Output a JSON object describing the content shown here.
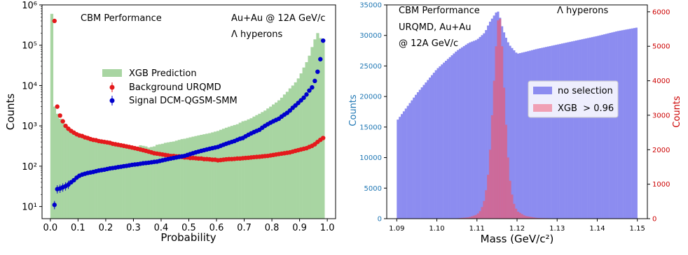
{
  "chart_data": [
    {
      "type": "bar",
      "title": "",
      "annotations": [
        "CBM Performance",
        "Au+Au @ 12A GeV/c",
        "Λ hyperons"
      ],
      "xlabel": "Probability",
      "ylabel": "Counts",
      "xlim": [
        -0.03,
        1.03
      ],
      "ylim": [
        5,
        1000000
      ],
      "yscale": "log",
      "xticks": [
        "0.0",
        "0.1",
        "0.2",
        "0.3",
        "0.4",
        "0.5",
        "0.6",
        "0.7",
        "0.8",
        "0.9",
        "1.0"
      ],
      "yticks": [
        "10¹",
        "10²",
        "10³",
        "10⁴",
        "10⁵",
        "10⁶"
      ],
      "legend_position": "center",
      "grid": false,
      "series": [
        {
          "name": "XGB Prediction",
          "kind": "histogram",
          "color": "#a8d5a2",
          "x": [
            0.005,
            0.015,
            0.025,
            0.035,
            0.045,
            0.055,
            0.065,
            0.075,
            0.085,
            0.095,
            0.105,
            0.115,
            0.125,
            0.135,
            0.145,
            0.155,
            0.165,
            0.175,
            0.185,
            0.195,
            0.205,
            0.215,
            0.225,
            0.235,
            0.245,
            0.255,
            0.265,
            0.275,
            0.285,
            0.295,
            0.305,
            0.315,
            0.325,
            0.335,
            0.345,
            0.355,
            0.365,
            0.375,
            0.385,
            0.395,
            0.405,
            0.415,
            0.425,
            0.435,
            0.445,
            0.455,
            0.465,
            0.475,
            0.485,
            0.495,
            0.505,
            0.515,
            0.525,
            0.535,
            0.545,
            0.555,
            0.565,
            0.575,
            0.585,
            0.595,
            0.605,
            0.615,
            0.625,
            0.635,
            0.645,
            0.655,
            0.665,
            0.675,
            0.685,
            0.695,
            0.705,
            0.715,
            0.725,
            0.735,
            0.745,
            0.755,
            0.765,
            0.775,
            0.785,
            0.795,
            0.805,
            0.815,
            0.825,
            0.835,
            0.845,
            0.855,
            0.865,
            0.875,
            0.885,
            0.895,
            0.905,
            0.915,
            0.925,
            0.935,
            0.945,
            0.955,
            0.965,
            0.975,
            0.985
          ],
          "values": [
            600000,
            3000,
            2000,
            1500,
            1200,
            1000,
            900,
            800,
            700,
            680,
            620,
            570,
            540,
            510,
            490,
            470,
            450,
            430,
            420,
            410,
            400,
            390,
            370,
            360,
            350,
            340,
            330,
            320,
            310,
            300,
            290,
            300,
            330,
            320,
            310,
            290,
            300,
            310,
            340,
            350,
            360,
            380,
            390,
            400,
            410,
            430,
            450,
            470,
            480,
            500,
            520,
            540,
            560,
            580,
            600,
            620,
            640,
            660,
            690,
            720,
            750,
            800,
            850,
            900,
            950,
            1000,
            1050,
            1100,
            1200,
            1300,
            1350,
            1450,
            1550,
            1700,
            1850,
            2000,
            2200,
            2400,
            2700,
            3000,
            3400,
            3800,
            4300,
            5000,
            6000,
            7000,
            8500,
            10000,
            12000,
            15000,
            20000,
            28000,
            38000,
            55000,
            90000,
            140000,
            200000,
            150000,
            140000
          ]
        },
        {
          "name": "Background URQMD",
          "kind": "points",
          "color": "#e41a1c",
          "x": [
            0.015,
            0.025,
            0.035,
            0.045,
            0.055,
            0.065,
            0.075,
            0.085,
            0.095,
            0.105,
            0.115,
            0.125,
            0.135,
            0.145,
            0.155,
            0.165,
            0.175,
            0.185,
            0.195,
            0.205,
            0.215,
            0.225,
            0.235,
            0.245,
            0.255,
            0.265,
            0.275,
            0.285,
            0.295,
            0.305,
            0.315,
            0.325,
            0.335,
            0.345,
            0.355,
            0.365,
            0.375,
            0.385,
            0.395,
            0.405,
            0.415,
            0.425,
            0.435,
            0.445,
            0.455,
            0.465,
            0.475,
            0.485,
            0.495,
            0.505,
            0.515,
            0.525,
            0.535,
            0.545,
            0.555,
            0.565,
            0.575,
            0.585,
            0.595,
            0.605,
            0.615,
            0.625,
            0.635,
            0.645,
            0.655,
            0.665,
            0.675,
            0.685,
            0.695,
            0.705,
            0.715,
            0.725,
            0.735,
            0.745,
            0.755,
            0.765,
            0.775,
            0.785,
            0.795,
            0.805,
            0.815,
            0.825,
            0.835,
            0.845,
            0.855,
            0.865,
            0.875,
            0.885,
            0.895,
            0.905,
            0.915,
            0.925,
            0.935,
            0.945,
            0.955,
            0.965,
            0.975,
            0.985
          ],
          "values": [
            400000,
            3000,
            1800,
            1300,
            1000,
            850,
            750,
            680,
            620,
            580,
            560,
            520,
            500,
            470,
            450,
            440,
            420,
            410,
            400,
            390,
            380,
            360,
            350,
            340,
            330,
            320,
            310,
            300,
            290,
            280,
            270,
            260,
            250,
            240,
            230,
            220,
            210,
            205,
            200,
            195,
            190,
            185,
            180,
            180,
            175,
            175,
            170,
            165,
            165,
            160,
            160,
            158,
            155,
            155,
            150,
            150,
            148,
            145,
            145,
            140,
            142,
            145,
            148,
            150,
            150,
            152,
            155,
            155,
            158,
            160,
            162,
            165,
            168,
            170,
            172,
            175,
            178,
            180,
            185,
            190,
            195,
            200,
            205,
            210,
            215,
            220,
            230,
            240,
            250,
            260,
            270,
            280,
            300,
            320,
            350,
            400,
            450,
            500
          ]
        },
        {
          "name": "Signal DCM-QGSM-SMM",
          "kind": "points",
          "color": "#0000cc",
          "x": [
            0.015,
            0.025,
            0.035,
            0.045,
            0.055,
            0.065,
            0.075,
            0.085,
            0.095,
            0.105,
            0.115,
            0.125,
            0.135,
            0.145,
            0.155,
            0.165,
            0.175,
            0.185,
            0.195,
            0.205,
            0.215,
            0.225,
            0.235,
            0.245,
            0.255,
            0.265,
            0.275,
            0.285,
            0.295,
            0.305,
            0.315,
            0.325,
            0.335,
            0.345,
            0.355,
            0.365,
            0.375,
            0.385,
            0.395,
            0.405,
            0.415,
            0.425,
            0.435,
            0.445,
            0.455,
            0.465,
            0.475,
            0.485,
            0.495,
            0.505,
            0.515,
            0.525,
            0.535,
            0.545,
            0.555,
            0.565,
            0.575,
            0.585,
            0.595,
            0.605,
            0.615,
            0.625,
            0.635,
            0.645,
            0.655,
            0.665,
            0.675,
            0.685,
            0.695,
            0.705,
            0.715,
            0.725,
            0.735,
            0.745,
            0.755,
            0.765,
            0.775,
            0.785,
            0.795,
            0.805,
            0.815,
            0.825,
            0.835,
            0.845,
            0.855,
            0.865,
            0.875,
            0.885,
            0.895,
            0.905,
            0.915,
            0.925,
            0.935,
            0.945,
            0.955,
            0.965,
            0.975,
            0.985
          ],
          "values": [
            11,
            27,
            28,
            30,
            32,
            35,
            40,
            45,
            52,
            58,
            62,
            65,
            68,
            70,
            72,
            75,
            78,
            80,
            82,
            85,
            88,
            90,
            92,
            95,
            97,
            100,
            102,
            105,
            108,
            110,
            112,
            115,
            118,
            120,
            122,
            125,
            128,
            130,
            135,
            140,
            145,
            150,
            155,
            160,
            165,
            170,
            175,
            180,
            190,
            200,
            210,
            220,
            230,
            240,
            250,
            260,
            270,
            280,
            290,
            300,
            320,
            340,
            360,
            380,
            400,
            420,
            450,
            480,
            500,
            550,
            600,
            650,
            700,
            750,
            800,
            900,
            1000,
            1100,
            1200,
            1300,
            1400,
            1500,
            1700,
            1900,
            2100,
            2400,
            2800,
            3200,
            3700,
            4300,
            5000,
            6000,
            7500,
            9000,
            13000,
            22000,
            45000,
            130000
          ]
        }
      ]
    },
    {
      "type": "bar",
      "title": "",
      "annotations": [
        "CBM Performance",
        "URQMD, Au+Au",
        "@ 12A GeV/c",
        "Λ hyperons"
      ],
      "xlabel": "Mass (GeV/c²)",
      "ylabel": "Counts",
      "y2label": "Counts",
      "xlim": [
        1.0875,
        1.1525
      ],
      "ylim": [
        0,
        35000
      ],
      "y2lim": [
        0,
        6200
      ],
      "xticks": [
        "1.09",
        "1.10",
        "1.11",
        "1.12",
        "1.13",
        "1.14",
        "1.15"
      ],
      "yticks": [
        "0",
        "5000",
        "10000",
        "15000",
        "20000",
        "25000",
        "30000",
        "35000"
      ],
      "y2ticks": [
        "0",
        "1000",
        "2000",
        "3000",
        "4000",
        "5000",
        "6000"
      ],
      "legend_position": "center-right",
      "grid": false,
      "series": [
        {
          "name": "no selection",
          "kind": "histogram",
          "axis": "left",
          "color": "#8c8cf0",
          "x": [
            1.09,
            1.095,
            1.1,
            1.105,
            1.108,
            1.11,
            1.112,
            1.113,
            1.114,
            1.115,
            1.1155,
            1.116,
            1.117,
            1.118,
            1.12,
            1.122,
            1.125,
            1.13,
            1.135,
            1.14,
            1.145,
            1.15
          ],
          "values": [
            16000,
            20500,
            24500,
            27500,
            28800,
            29300,
            30500,
            32000,
            33000,
            34000,
            33800,
            32000,
            30000,
            28500,
            27000,
            27300,
            27800,
            28500,
            29200,
            29900,
            30700,
            31300
          ]
        },
        {
          "name": "XGB  > 0.96",
          "kind": "histogram",
          "axis": "right",
          "color": "#e06080",
          "x": [
            1.105,
            1.108,
            1.11,
            1.111,
            1.112,
            1.113,
            1.114,
            1.115,
            1.1155,
            1.116,
            1.117,
            1.118,
            1.119,
            1.12,
            1.122,
            1.125,
            1.13
          ],
          "values": [
            10,
            40,
            120,
            250,
            600,
            1500,
            3500,
            5500,
            6000,
            5600,
            3200,
            1300,
            500,
            220,
            80,
            20,
            5
          ]
        }
      ]
    }
  ]
}
